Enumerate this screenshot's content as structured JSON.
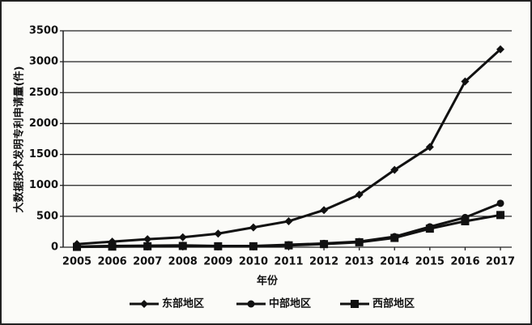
{
  "chart_data": {
    "type": "line",
    "x_label": "年份",
    "y_label": "大数据技术发明专利申请量(件)",
    "x": [
      2005,
      2006,
      2007,
      2008,
      2009,
      2010,
      2011,
      2012,
      2013,
      2014,
      2015,
      2016,
      2017
    ],
    "xlim": [
      2005,
      2017
    ],
    "xticks": [
      2005,
      2006,
      2007,
      2008,
      2009,
      2010,
      2011,
      2012,
      2013,
      2014,
      2015,
      2016,
      2017
    ],
    "ylim": [
      0,
      3500
    ],
    "yticks": [
      0,
      500,
      1000,
      1500,
      2000,
      2500,
      3000,
      3500
    ],
    "grid": true,
    "legend": "bottom",
    "series": [
      {
        "name": "东部地区",
        "color": "#111111",
        "marker": "diamond",
        "values": [
          50,
          90,
          130,
          160,
          220,
          320,
          420,
          600,
          850,
          1250,
          1620,
          2680,
          3200
        ]
      },
      {
        "name": "中部地区",
        "color": "#111111",
        "marker": "circle",
        "values": [
          10,
          20,
          25,
          30,
          20,
          20,
          40,
          60,
          90,
          170,
          330,
          480,
          710
        ]
      },
      {
        "name": "西部地区",
        "color": "#111111",
        "marker": "square",
        "values": [
          5,
          10,
          15,
          20,
          15,
          15,
          30,
          50,
          80,
          150,
          300,
          420,
          520
        ]
      }
    ]
  }
}
